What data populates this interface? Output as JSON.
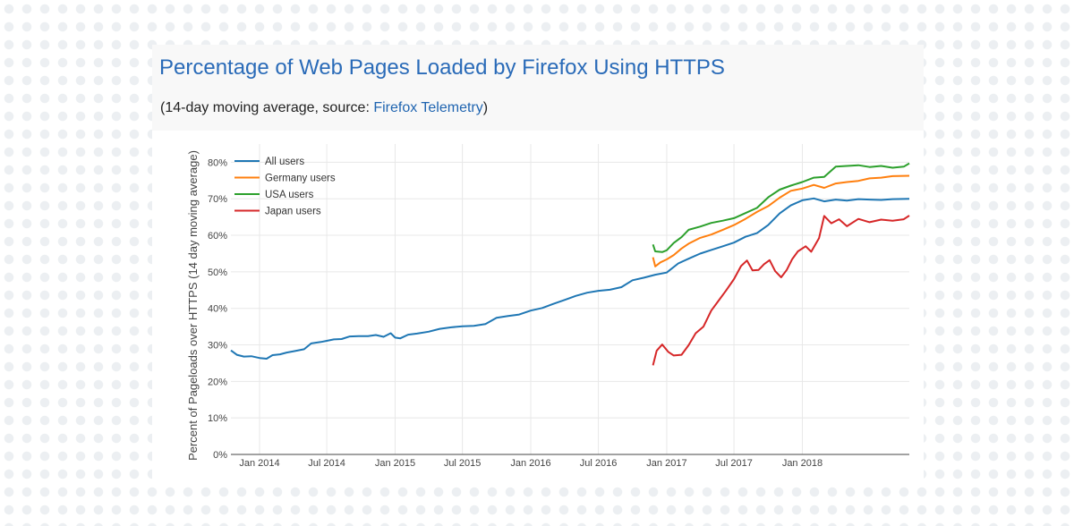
{
  "header": {
    "title": "Percentage of Web Pages Loaded by Firefox Using HTTPS",
    "subtitle_prefix": "(14-day moving average, source: ",
    "subtitle_link": "Firefox Telemetry",
    "subtitle_suffix": ")"
  },
  "colors": {
    "title": "#2a6bb8",
    "link": "#1f64b0",
    "all_users": "#1f77b4",
    "germany_users": "#ff7f0e",
    "usa_users": "#2ca02c",
    "japan_users": "#d62728",
    "grid": "#e8e8e8"
  },
  "chart_data": {
    "type": "line",
    "title": "Percentage of Web Pages Loaded by Firefox Using HTTPS",
    "subtitle": "(14-day moving average, source: Firefox Telemetry)",
    "xlabel": "",
    "ylabel": "Percent of Pageloads over HTTPS (14 day moving average)",
    "xlim": [
      "2013-10-16",
      "2018-10-16"
    ],
    "ylim": [
      0,
      85
    ],
    "y_ticks": [
      0,
      10,
      20,
      30,
      40,
      50,
      60,
      70,
      80
    ],
    "y_tick_labels": [
      "0%",
      "10%",
      "20%",
      "30%",
      "40%",
      "50%",
      "60%",
      "70%",
      "80%"
    ],
    "x_ticks": [
      "2014-01-01",
      "2014-07-01",
      "2015-01-01",
      "2015-07-01",
      "2016-01-01",
      "2016-07-01",
      "2017-01-01",
      "2017-07-01",
      "2018-01-01"
    ],
    "x_tick_labels": [
      "Jan 2014",
      "Jul 2014",
      "Jan 2015",
      "Jul 2015",
      "Jan 2016",
      "Jul 2016",
      "Jan 2017",
      "Jul 2017",
      "Jan 2018"
    ],
    "grid": true,
    "legend_position": "top-left",
    "series": [
      {
        "name": "All users",
        "color": "#1f77b4",
        "points": [
          [
            "2013-10-16",
            28.5
          ],
          [
            "2013-11-01",
            27.3
          ],
          [
            "2013-11-20",
            26.8
          ],
          [
            "2013-12-10",
            26.9
          ],
          [
            "2014-01-01",
            26.4
          ],
          [
            "2014-01-20",
            26.2
          ],
          [
            "2014-02-05",
            27.2
          ],
          [
            "2014-02-25",
            27.4
          ],
          [
            "2014-03-15",
            27.9
          ],
          [
            "2014-04-05",
            28.3
          ],
          [
            "2014-05-01",
            28.8
          ],
          [
            "2014-05-20",
            30.4
          ],
          [
            "2014-06-15",
            30.8
          ],
          [
            "2014-07-01",
            31.1
          ],
          [
            "2014-07-20",
            31.5
          ],
          [
            "2014-08-10",
            31.6
          ],
          [
            "2014-09-01",
            32.3
          ],
          [
            "2014-09-25",
            32.4
          ],
          [
            "2014-10-20",
            32.4
          ],
          [
            "2014-11-10",
            32.7
          ],
          [
            "2014-12-01",
            32.2
          ],
          [
            "2014-12-20",
            33.2
          ],
          [
            "2015-01-01",
            32.0
          ],
          [
            "2015-01-15",
            31.8
          ],
          [
            "2015-02-05",
            32.8
          ],
          [
            "2015-03-01",
            33.1
          ],
          [
            "2015-04-01",
            33.6
          ],
          [
            "2015-05-01",
            34.4
          ],
          [
            "2015-06-01",
            34.8
          ],
          [
            "2015-07-01",
            35.1
          ],
          [
            "2015-08-01",
            35.2
          ],
          [
            "2015-09-01",
            35.7
          ],
          [
            "2015-10-01",
            37.4
          ],
          [
            "2015-11-01",
            37.9
          ],
          [
            "2015-12-01",
            38.3
          ],
          [
            "2016-01-01",
            39.4
          ],
          [
            "2016-02-01",
            40.1
          ],
          [
            "2016-03-01",
            41.2
          ],
          [
            "2016-04-01",
            42.3
          ],
          [
            "2016-05-01",
            43.4
          ],
          [
            "2016-06-01",
            44.3
          ],
          [
            "2016-07-01",
            44.8
          ],
          [
            "2016-08-01",
            45.1
          ],
          [
            "2016-09-01",
            45.8
          ],
          [
            "2016-10-01",
            47.7
          ],
          [
            "2016-11-01",
            48.4
          ],
          [
            "2016-12-01",
            49.2
          ],
          [
            "2017-01-01",
            49.8
          ],
          [
            "2017-02-01",
            52.3
          ],
          [
            "2017-03-01",
            53.6
          ],
          [
            "2017-04-01",
            55.0
          ],
          [
            "2017-05-01",
            56.0
          ],
          [
            "2017-06-01",
            57.0
          ],
          [
            "2017-07-01",
            58.0
          ],
          [
            "2017-08-01",
            59.6
          ],
          [
            "2017-09-01",
            60.6
          ],
          [
            "2017-10-01",
            62.8
          ],
          [
            "2017-11-01",
            66.0
          ],
          [
            "2017-12-01",
            68.2
          ],
          [
            "2018-01-01",
            69.6
          ],
          [
            "2018-02-01",
            70.1
          ],
          [
            "2018-03-01",
            69.3
          ],
          [
            "2018-04-01",
            69.8
          ],
          [
            "2018-05-01",
            69.5
          ],
          [
            "2018-06-01",
            69.9
          ],
          [
            "2018-07-01",
            69.8
          ],
          [
            "2018-08-01",
            69.7
          ],
          [
            "2018-09-01",
            69.9
          ],
          [
            "2018-10-16",
            70.0
          ]
        ]
      },
      {
        "name": "Germany users",
        "color": "#ff7f0e",
        "points": [
          [
            "2016-11-25",
            54.0
          ],
          [
            "2016-12-01",
            51.5
          ],
          [
            "2016-12-15",
            52.6
          ],
          [
            "2017-01-01",
            53.4
          ],
          [
            "2017-01-20",
            54.6
          ],
          [
            "2017-02-10",
            56.4
          ],
          [
            "2017-03-01",
            57.7
          ],
          [
            "2017-04-01",
            59.3
          ],
          [
            "2017-05-01",
            60.2
          ],
          [
            "2017-06-01",
            61.5
          ],
          [
            "2017-07-01",
            62.8
          ],
          [
            "2017-08-01",
            64.5
          ],
          [
            "2017-09-01",
            66.4
          ],
          [
            "2017-10-01",
            68.0
          ],
          [
            "2017-11-01",
            70.3
          ],
          [
            "2017-12-01",
            72.2
          ],
          [
            "2018-01-01",
            72.8
          ],
          [
            "2018-02-01",
            73.8
          ],
          [
            "2018-03-01",
            73.0
          ],
          [
            "2018-04-01",
            74.2
          ],
          [
            "2018-05-01",
            74.6
          ],
          [
            "2018-06-01",
            74.9
          ],
          [
            "2018-07-01",
            75.6
          ],
          [
            "2018-08-01",
            75.8
          ],
          [
            "2018-09-01",
            76.2
          ],
          [
            "2018-10-16",
            76.3
          ]
        ]
      },
      {
        "name": "USA users",
        "color": "#2ca02c",
        "points": [
          [
            "2016-11-25",
            57.5
          ],
          [
            "2016-12-01",
            55.6
          ],
          [
            "2016-12-20",
            55.4
          ],
          [
            "2017-01-01",
            55.9
          ],
          [
            "2017-01-20",
            57.9
          ],
          [
            "2017-02-10",
            59.5
          ],
          [
            "2017-03-01",
            61.5
          ],
          [
            "2017-04-01",
            62.4
          ],
          [
            "2017-05-01",
            63.4
          ],
          [
            "2017-06-01",
            64.0
          ],
          [
            "2017-07-01",
            64.7
          ],
          [
            "2017-08-01",
            66.1
          ],
          [
            "2017-09-01",
            67.5
          ],
          [
            "2017-10-01",
            70.4
          ],
          [
            "2017-11-01",
            72.5
          ],
          [
            "2017-12-01",
            73.6
          ],
          [
            "2018-01-01",
            74.6
          ],
          [
            "2018-02-01",
            75.8
          ],
          [
            "2018-03-01",
            76.0
          ],
          [
            "2018-04-01",
            78.8
          ],
          [
            "2018-05-01",
            79.0
          ],
          [
            "2018-06-01",
            79.2
          ],
          [
            "2018-07-01",
            78.7
          ],
          [
            "2018-08-01",
            79.0
          ],
          [
            "2018-09-01",
            78.5
          ],
          [
            "2018-10-01",
            78.8
          ],
          [
            "2018-10-16",
            79.7
          ]
        ]
      },
      {
        "name": "Japan users",
        "color": "#d62728",
        "points": [
          [
            "2016-11-25",
            24.4
          ],
          [
            "2016-12-05",
            28.4
          ],
          [
            "2016-12-20",
            30.1
          ],
          [
            "2017-01-05",
            28.1
          ],
          [
            "2017-01-20",
            27.1
          ],
          [
            "2017-02-10",
            27.3
          ],
          [
            "2017-03-01",
            29.9
          ],
          [
            "2017-03-20",
            33.2
          ],
          [
            "2017-04-10",
            35.0
          ],
          [
            "2017-05-01",
            39.4
          ],
          [
            "2017-05-20",
            42.0
          ],
          [
            "2017-06-10",
            44.9
          ],
          [
            "2017-07-01",
            48.0
          ],
          [
            "2017-07-20",
            51.6
          ],
          [
            "2017-08-05",
            53.1
          ],
          [
            "2017-08-20",
            50.4
          ],
          [
            "2017-09-05",
            50.5
          ],
          [
            "2017-09-20",
            52.1
          ],
          [
            "2017-10-05",
            53.2
          ],
          [
            "2017-10-20",
            50.2
          ],
          [
            "2017-11-05",
            48.5
          ],
          [
            "2017-11-20",
            50.5
          ],
          [
            "2017-12-05",
            53.5
          ],
          [
            "2017-12-20",
            55.6
          ],
          [
            "2018-01-10",
            57.0
          ],
          [
            "2018-01-25",
            55.5
          ],
          [
            "2018-02-15",
            59.2
          ],
          [
            "2018-03-01",
            65.3
          ],
          [
            "2018-03-20",
            63.3
          ],
          [
            "2018-04-10",
            64.4
          ],
          [
            "2018-05-01",
            62.5
          ],
          [
            "2018-06-01",
            64.5
          ],
          [
            "2018-07-01",
            63.6
          ],
          [
            "2018-08-01",
            64.3
          ],
          [
            "2018-09-01",
            64.0
          ],
          [
            "2018-10-01",
            64.4
          ],
          [
            "2018-10-16",
            65.4
          ]
        ]
      }
    ]
  }
}
